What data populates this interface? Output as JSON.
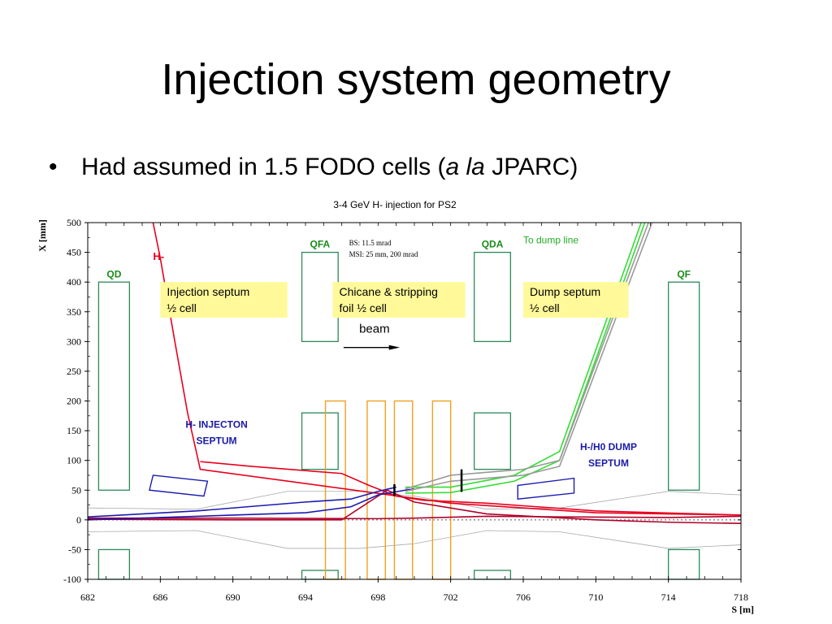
{
  "slide": {
    "title": "Injection system geometry",
    "bullet_marker": "•",
    "bullet_before": "Had assumed in 1.5 FODO cells (",
    "bullet_italic": "a la",
    "bullet_after": " JPARC)"
  },
  "colors": {
    "red": "#e8001c",
    "dark_red": "#b0002a",
    "blue": "#1a1ab0",
    "green_bright": "#33dd33",
    "grey": "#9a9a9a",
    "magnet_green": "#2a8a5a",
    "orange": "#f0a020",
    "box_yellow": "#fff99a",
    "navy_text": "#1a1aa8",
    "label_green": "#1a8a1a",
    "dump_text_green": "#22aa22"
  },
  "chart_data": {
    "type": "line",
    "title": "3-4 GeV H- injection for PS2",
    "xlabel": "S [m]",
    "ylabel": "X [mm]",
    "xlim": [
      682,
      718
    ],
    "ylim": [
      -100,
      500
    ],
    "x_ticks": [
      682,
      686,
      690,
      694,
      698,
      702,
      706,
      710,
      714,
      718
    ],
    "y_ticks": [
      500,
      450,
      400,
      350,
      300,
      250,
      200,
      150,
      100,
      50,
      0,
      -50,
      -100
    ],
    "series": [
      {
        "color": "red",
        "points": [
          [
            685.6,
            500
          ],
          [
            686.0,
            440
          ],
          [
            686.8,
            300
          ],
          [
            687.5,
            180
          ],
          [
            688.2,
            85
          ],
          [
            702.0,
            28
          ],
          [
            710.0,
            12
          ],
          [
            718.0,
            8
          ]
        ]
      },
      {
        "color": "red",
        "points": [
          [
            688.2,
            98
          ],
          [
            691.0,
            90
          ],
          [
            696.0,
            78
          ],
          [
            697.5,
            58
          ],
          [
            699.0,
            40
          ],
          [
            700.5,
            33
          ],
          [
            704.0,
            28
          ],
          [
            710.0,
            15
          ],
          [
            718.0,
            8
          ]
        ]
      },
      {
        "color": "dark_red",
        "points": [
          [
            682.0,
            3
          ],
          [
            690.0,
            3
          ],
          [
            698.0,
            2
          ],
          [
            700.0,
            3
          ],
          [
            704.0,
            6
          ],
          [
            708.0,
            5
          ],
          [
            714.0,
            4
          ],
          [
            718.0,
            6
          ]
        ]
      },
      {
        "color": "dark_red",
        "points": [
          [
            682.0,
            1
          ],
          [
            690.0,
            0
          ],
          [
            696.0,
            0
          ],
          [
            698.5,
            50
          ],
          [
            700.0,
            30
          ],
          [
            704.0,
            10
          ],
          [
            710.0,
            0
          ],
          [
            714.0,
            -4
          ],
          [
            718.0,
            -6
          ]
        ]
      },
      {
        "color": "blue",
        "points": [
          [
            682.0,
            0
          ],
          [
            690.0,
            8
          ],
          [
            694.0,
            12
          ],
          [
            696.5,
            22
          ],
          [
            698.0,
            42
          ],
          [
            699.5,
            50
          ],
          [
            700.0,
            52
          ]
        ]
      },
      {
        "color": "blue",
        "points": [
          [
            682.0,
            5
          ],
          [
            688.0,
            15
          ],
          [
            694.0,
            30
          ],
          [
            696.5,
            35
          ],
          [
            698.0,
            48
          ],
          [
            699.0,
            55
          ]
        ]
      },
      {
        "color": "green_bright",
        "points": [
          [
            699.5,
            55
          ],
          [
            702.0,
            55
          ],
          [
            705.5,
            75
          ],
          [
            708.0,
            115
          ],
          [
            712.5,
            500
          ]
        ]
      },
      {
        "color": "green_bright",
        "points": [
          [
            699.5,
            45
          ],
          [
            702.0,
            46
          ],
          [
            705.5,
            65
          ],
          [
            708.0,
            100
          ],
          [
            712.7,
            500
          ]
        ]
      },
      {
        "color": "grey",
        "points": [
          [
            699.5,
            52
          ],
          [
            702.0,
            75
          ],
          [
            706.0,
            85
          ],
          [
            708.0,
            100
          ],
          [
            712.9,
            500
          ]
        ]
      },
      {
        "color": "grey",
        "points": [
          [
            699.5,
            48
          ],
          [
            702.0,
            65
          ],
          [
            706.0,
            75
          ],
          [
            708.0,
            90
          ],
          [
            713.1,
            500
          ]
        ]
      }
    ],
    "envelope": [
      [
        682,
        20
      ],
      [
        688,
        18
      ],
      [
        693,
        48
      ],
      [
        697,
        48
      ],
      [
        700,
        40
      ],
      [
        704,
        18
      ],
      [
        708,
        20
      ],
      [
        714,
        48
      ],
      [
        718,
        42
      ]
    ],
    "legend": "none",
    "grid": false
  },
  "annotations": {
    "magnets": [
      {
        "label": "QD",
        "x1": 682.6,
        "x2": 684.3,
        "y_top": 400,
        "y_bot": 50,
        "lower_top": -50
      },
      {
        "label": "QFA",
        "x1": 693.8,
        "x2": 695.8,
        "y_top": 450,
        "y_bot": 300,
        "lower_top": 180,
        "lower_bot": 85
      },
      {
        "label": "QDA",
        "x1": 703.3,
        "x2": 705.3,
        "y_top": 450,
        "y_bot": 300,
        "lower_top": 180,
        "lower_bot": 85
      },
      {
        "label": "QF",
        "x1": 714.0,
        "x2": 715.7,
        "y_top": 400,
        "y_bot": 50,
        "lower_top": -50
      }
    ],
    "magnet_labels_y": [
      408,
      458,
      458,
      408
    ],
    "chicane_boxes": [
      [
        695.1,
        696.2
      ],
      [
        697.4,
        698.4
      ],
      [
        698.9,
        699.9
      ],
      [
        701.0,
        702.0
      ]
    ],
    "chicane_top": 200,
    "label_boxes": [
      {
        "lines": [
          "Injection septum",
          "½ cell"
        ],
        "x1": 686.0,
        "x2": 693.0,
        "y_top": 400,
        "y_bot": 340
      },
      {
        "lines": [
          "Chicane & stripping",
          "foil ½ cell"
        ],
        "x1": 695.5,
        "x2": 702.8,
        "y_top": 400,
        "y_bot": 340
      },
      {
        "lines": [
          "Dump septum",
          "½ cell"
        ],
        "x1": 706.0,
        "x2": 711.8,
        "y_top": 400,
        "y_bot": 340
      }
    ],
    "params": [
      "BS: 11.5 mrad",
      "MSI: 25 mm, 200 mrad"
    ],
    "h_minus_label": "H-",
    "dump_line_label": "To dump line",
    "beam_label": "beam",
    "injection_septum_label": [
      "H- INJECTON",
      "SEPTUM"
    ],
    "dump_septum_label": [
      "H-/H0 DUMP",
      "SEPTUM"
    ]
  }
}
